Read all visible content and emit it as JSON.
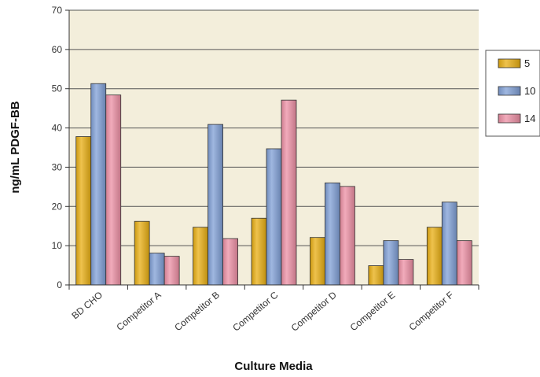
{
  "chart_data": {
    "type": "bar",
    "title": "",
    "xlabel": "Culture Media",
    "ylabel": "ng/mL PDGF-BB",
    "ylim": [
      0,
      70
    ],
    "yticks": [
      0,
      10,
      20,
      30,
      40,
      50,
      60,
      70
    ],
    "grid": true,
    "legend_position": "right",
    "plot_background": "#f3eedb",
    "categories": [
      "BD CHO",
      "Competitor A",
      "Competitor B",
      "Competitor C",
      "Competitor D",
      "Competitor E",
      "Competitor F"
    ],
    "series": [
      {
        "name": "5",
        "color": "#e8ae12",
        "values": [
          37.8,
          16.2,
          14.7,
          17.0,
          12.1,
          4.9,
          14.7
        ]
      },
      {
        "name": "10",
        "color": "#7f9fd6",
        "values": [
          51.3,
          8.1,
          40.9,
          34.7,
          26.0,
          11.3,
          21.1
        ]
      },
      {
        "name": "14",
        "color": "#ec8fa4",
        "values": [
          48.4,
          7.3,
          11.8,
          47.1,
          25.1,
          6.5,
          11.3
        ]
      }
    ]
  }
}
